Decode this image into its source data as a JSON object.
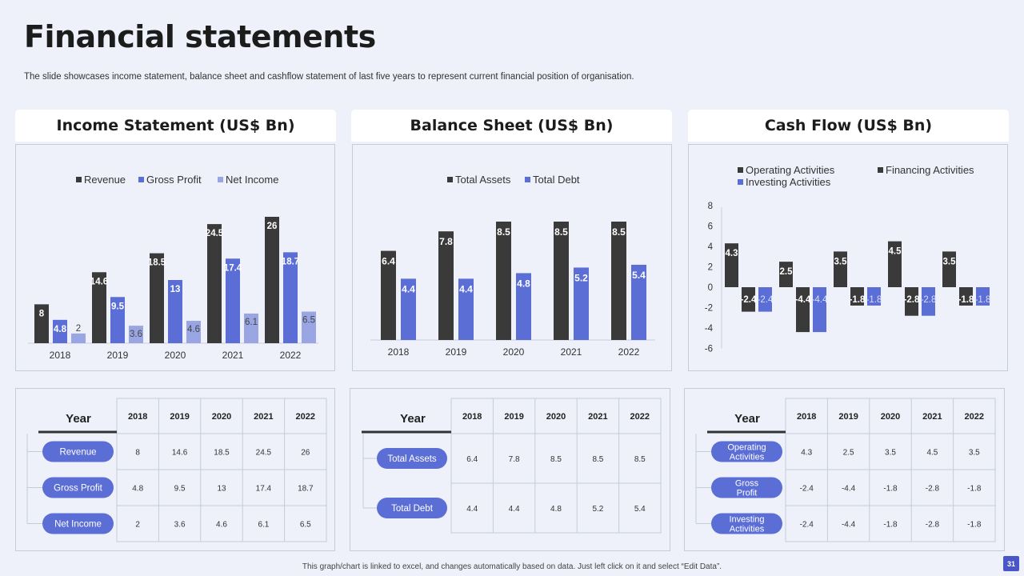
{
  "page": {
    "title": "Financial statements",
    "subtitle": "The slide showcases income statement, balance sheet and cashflow statement of last five years to  represent current financial position of organisation.",
    "footer_note": "This graph/chart is linked to excel, and changes automatically based on data. Just left click on it and select “Edit Data”.",
    "page_number": "31"
  },
  "panels": {
    "income": {
      "header": "Income Statement (US$ Bn)"
    },
    "balance": {
      "header": "Balance Sheet (US$ Bn)"
    },
    "cashflow": {
      "header": "Cash Flow (US$ Bn)"
    }
  },
  "colors": {
    "dark": "#3a3a3a",
    "blue": "#5b6ed6",
    "light": "#9aa6e4",
    "grid": "#c9cdd8",
    "pill": "#5b6ed6",
    "table_line": "#c6cbda"
  },
  "chart_data": [
    {
      "id": "income",
      "type": "bar",
      "title": "Income Statement (US$ Bn)",
      "categories": [
        "2018",
        "2019",
        "2020",
        "2021",
        "2022"
      ],
      "series": [
        {
          "name": "Revenue",
          "color": "#3a3a3a",
          "values": [
            8,
            14.6,
            18.5,
            24.5,
            26
          ]
        },
        {
          "name": "Gross Profit",
          "color": "#5b6ed6",
          "values": [
            4.8,
            9.5,
            13,
            17.4,
            18.7
          ]
        },
        {
          "name": "Net Income",
          "color": "#9aa6e4",
          "values": [
            2,
            3.6,
            4.6,
            6.1,
            6.5
          ]
        }
      ],
      "ylim": [
        0,
        26
      ],
      "legend": "top",
      "grid": false
    },
    {
      "id": "balance",
      "type": "bar",
      "title": "Balance Sheet (US$ Bn)",
      "categories": [
        "2018",
        "2019",
        "2020",
        "2021",
        "2022"
      ],
      "series": [
        {
          "name": "Total Assets",
          "color": "#3a3a3a",
          "values": [
            6.4,
            7.8,
            8.5,
            8.5,
            8.5
          ]
        },
        {
          "name": "Total Debt",
          "color": "#5b6ed6",
          "values": [
            4.4,
            4.4,
            4.8,
            5.2,
            5.4
          ]
        }
      ],
      "ylim": [
        0,
        8.5
      ],
      "legend": "top",
      "grid": false
    },
    {
      "id": "cashflow",
      "type": "bar",
      "title": "Cash Flow (US$ Bn)",
      "categories": [
        "2018",
        "2019",
        "2020",
        "2021",
        "2022"
      ],
      "series": [
        {
          "name": "Operating Activities",
          "color": "#3a3a3a",
          "values": [
            4.3,
            2.5,
            3.5,
            4.5,
            3.5
          ]
        },
        {
          "name": "Financing Activities",
          "color": "#3a3a3a",
          "values": [
            -2.4,
            -4.4,
            -1.8,
            -2.8,
            -1.8
          ]
        },
        {
          "name": "Investing Activities",
          "color": "#5b6ed6",
          "values": [
            -2.4,
            -4.4,
            -1.8,
            -2.8,
            -1.8
          ]
        }
      ],
      "yticks": [
        8,
        6,
        4,
        2,
        0,
        -2,
        -4,
        -6
      ],
      "ylim": [
        -6,
        8
      ],
      "legend": "top",
      "grid": false
    }
  ],
  "tables": [
    {
      "id": "income",
      "year_label": "Year",
      "years": [
        "2018",
        "2019",
        "2020",
        "2021",
        "2022"
      ],
      "rows": [
        {
          "label": "Revenue",
          "values": [
            "8",
            "14.6",
            "18.5",
            "24.5",
            "26"
          ]
        },
        {
          "label": "Gross Profit",
          "values": [
            "4.8",
            "9.5",
            "13",
            "17.4",
            "18.7"
          ]
        },
        {
          "label": "Net Income",
          "values": [
            "2",
            "3.6",
            "4.6",
            "6.1",
            "6.5"
          ]
        }
      ]
    },
    {
      "id": "balance",
      "year_label": "Year",
      "years": [
        "2018",
        "2019",
        "2020",
        "2021",
        "2022"
      ],
      "rows": [
        {
          "label": "Total Assets",
          "values": [
            "6.4",
            "7.8",
            "8.5",
            "8.5",
            "8.5"
          ]
        },
        {
          "label": "Total Debt",
          "values": [
            "4.4",
            "4.4",
            "4.8",
            "5.2",
            "5.4"
          ]
        }
      ]
    },
    {
      "id": "cashflow",
      "year_label": "Year",
      "years": [
        "2018",
        "2019",
        "2020",
        "2021",
        "2022"
      ],
      "rows": [
        {
          "label": "Operating Activities",
          "values": [
            "4.3",
            "2.5",
            "3.5",
            "4.5",
            "3.5"
          ]
        },
        {
          "label": "Gross Profit",
          "values": [
            "-2.4",
            "-4.4",
            "-1.8",
            "-2.8",
            "-1.8"
          ]
        },
        {
          "label": "Investing Activities",
          "values": [
            "-2.4",
            "-4.4",
            "-1.8",
            "-2.8",
            "-1.8"
          ]
        }
      ]
    }
  ]
}
